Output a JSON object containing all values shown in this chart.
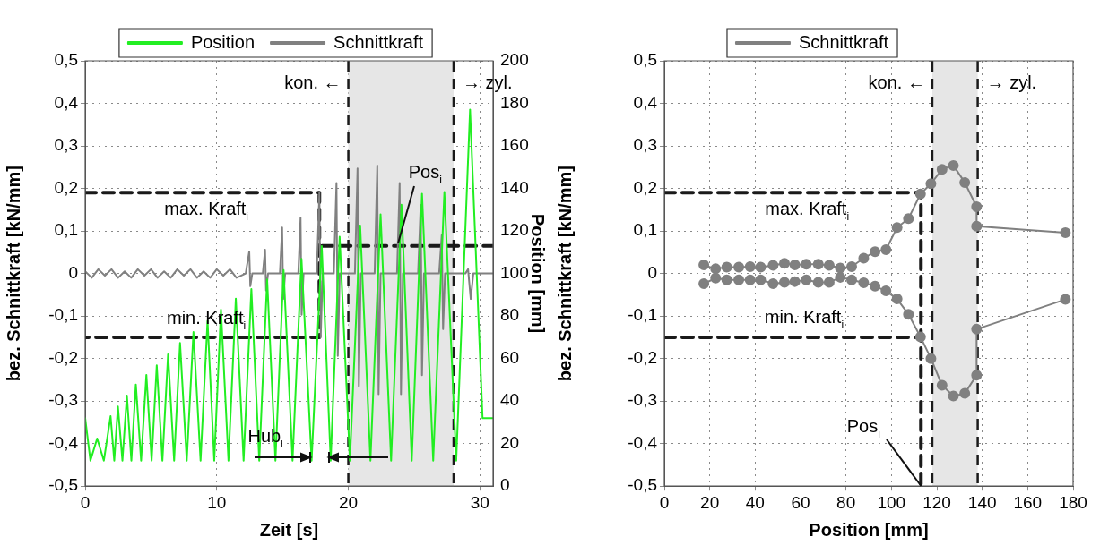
{
  "chart_data": [
    {
      "type": "line",
      "legend": "top",
      "grid": true,
      "marker": "none",
      "xlabel": "Zeit [s]",
      "ylabel": "bez. Schnittkraft [kN/mm]",
      "y2label": "Position [mm]",
      "xlim": [
        0,
        31
      ],
      "xticks": [
        0,
        10,
        20,
        30
      ],
      "ylim": [
        -0.5,
        0.5
      ],
      "yticks": [
        {
          "value": -0.5,
          "label": "-0,5"
        },
        {
          "value": -0.4,
          "label": "-0,4"
        },
        {
          "value": -0.3,
          "label": "-0,3"
        },
        {
          "value": -0.2,
          "label": "-0,2"
        },
        {
          "value": -0.1,
          "label": "-0,1"
        },
        0,
        {
          "value": 0.1,
          "label": "0,1"
        },
        {
          "value": 0.2,
          "label": "0,2"
        },
        {
          "value": 0.3,
          "label": "0,3"
        },
        {
          "value": 0.4,
          "label": "0,4"
        },
        {
          "value": 0.5,
          "label": "0,5"
        }
      ],
      "y2lim": [
        0,
        200
      ],
      "y2ticks": [
        0,
        20,
        40,
        60,
        80,
        100,
        120,
        140,
        160,
        180,
        200
      ],
      "bands": [
        {
          "axis": "x",
          "from": 20,
          "to": 28,
          "color": "#e6e6e6"
        }
      ],
      "ref_lines": [
        {
          "axis": "x",
          "value": 20,
          "label": "kon. ←",
          "color": "#1a1a1a",
          "line_style": "dashed"
        },
        {
          "axis": "x",
          "value": 28,
          "label": "→ zyl.",
          "color": "#1a1a1a",
          "line_style": "dashed"
        }
      ],
      "annotations": [
        "max. Kraft$_{i}$",
        "min. Kraft$_{i}$",
        {
          "text": "Pos$_{i}$",
          "x": 23.8,
          "y": 0.071
        },
        "Hub$_{i}$"
      ],
      "series": [
        {
          "name": "Position",
          "color": "#22ee22",
          "axis": "y2",
          "x": [
            0,
            0.4,
            0.91,
            1.42,
            1.93,
            2.21,
            2.49,
            2.83,
            3.17,
            3.51,
            3.85,
            4.25,
            4.65,
            5.05,
            5.44,
            5.87,
            6.3,
            6.76,
            7.21,
            7.72,
            8.23,
            8.77,
            9.3,
            9.81,
            10.32,
            10.89,
            11.45,
            12.04,
            12.63,
            13.23,
            13.83,
            14.46,
            15.08,
            15.76,
            16.44,
            17.21,
            17.98,
            18.66,
            19.34,
            20.12,
            20.9,
            21.68,
            22.45,
            23.25,
            24.04,
            24.82,
            25.6,
            26.45,
            27.3,
            28.2,
            29.25,
            30.2,
            31
          ],
          "values": [
            32,
            12,
            22.4,
            12,
            32.9,
            12,
            37.4,
            12,
            42.6,
            12,
            47.8,
            12,
            52.3,
            12,
            56.8,
            12,
            62,
            12,
            67.3,
            12,
            72.5,
            12,
            77.7,
            12,
            83,
            12,
            88.2,
            12,
            92.7,
            12,
            97.2,
            12,
            101.6,
            12,
            106.9,
            12,
            112.9,
            12,
            117.3,
            12,
            122.6,
            12,
            127.8,
            12,
            132.3,
            12,
            137.5,
            12,
            138.3,
            12,
            177.1,
            32,
            32
          ]
        },
        {
          "name": "Schnittkraft",
          "color": "#808080",
          "x": [
            0,
            0.5,
            1,
            1.5,
            2,
            2.5,
            3,
            3.5,
            4,
            4.5,
            5,
            5.5,
            6,
            6.5,
            7,
            7.5,
            8,
            8.5,
            9,
            9.5,
            10,
            10.5,
            11,
            11.5,
            12.2,
            12.47,
            12.55,
            12.7,
            13.5,
            13.67,
            13.75,
            13.9,
            14.8,
            14.97,
            15.05,
            15.2,
            16.2,
            16.37,
            16.45,
            16.6,
            17.6,
            17.8,
            17.9,
            18.05,
            18.9,
            19.1,
            19.2,
            19.35,
            20.5,
            20.7,
            20.8,
            20.95,
            22,
            22.2,
            22.3,
            22.45,
            23.7,
            23.9,
            24,
            24.15,
            25.3,
            25.5,
            25.6,
            25.75,
            26.9,
            27.1,
            27.2,
            27.35,
            28.9,
            29.1,
            29.3,
            29.5,
            31
          ],
          "values": [
            0.005,
            -0.01,
            0.01,
            -0.005,
            0.01,
            -0.01,
            0.005,
            -0.01,
            0.01,
            -0.005,
            0.01,
            -0.01,
            0.005,
            -0.01,
            0.01,
            -0.005,
            0.01,
            -0.01,
            0.005,
            -0.01,
            0.01,
            -0.005,
            0.01,
            -0.01,
            0,
            0.052,
            -0.03,
            0,
            0,
            0.056,
            -0.04,
            0,
            0,
            0.108,
            -0.06,
            0,
            0,
            0.131,
            -0.097,
            0,
            0,
            0.19,
            -0.15,
            0,
            0,
            0.213,
            -0.194,
            0,
            0,
            0.247,
            -0.265,
            0,
            0,
            0.254,
            -0.284,
            0,
            0,
            0.213,
            -0.284,
            0,
            0,
            0.161,
            -0.239,
            0,
            0,
            0.09,
            -0.131,
            0,
            0,
            0.01,
            -0.06,
            0,
            0
          ]
        },
        {
          "color": "#1a1a1a",
          "line_style": "dashed",
          "x": [
            0,
            17.8,
            17.8,
            0
          ],
          "values": [
            0.19,
            0.19,
            -0.15,
            -0.15
          ]
        },
        {
          "color": "#1a1a1a",
          "line_style": "dashed",
          "axis": "y2",
          "x": [
            18,
            31
          ],
          "values": [
            113,
            113
          ]
        }
      ]
    },
    {
      "type": "line",
      "legend": "top",
      "grid": true,
      "marker": "circle",
      "xlabel": "Position [mm]",
      "ylabel": "bez. Schnittkraft [kN/mm]",
      "xlim": [
        0,
        180
      ],
      "xticks": [
        0,
        20,
        40,
        60,
        80,
        100,
        120,
        140,
        160,
        180
      ],
      "ylim": [
        -0.5,
        0.5
      ],
      "yticks": [
        {
          "value": -0.5,
          "label": "-0,5"
        },
        {
          "value": -0.4,
          "label": "-0,4"
        },
        {
          "value": -0.3,
          "label": "-0,3"
        },
        {
          "value": -0.2,
          "label": "-0,2"
        },
        {
          "value": -0.1,
          "label": "-0,1"
        },
        0,
        {
          "value": 0.1,
          "label": "0,1"
        },
        {
          "value": 0.2,
          "label": "0,2"
        },
        {
          "value": 0.3,
          "label": "0,3"
        },
        {
          "value": 0.4,
          "label": "0,4"
        },
        {
          "value": 0.5,
          "label": "0,5"
        }
      ],
      "bands": [
        {
          "axis": "x",
          "from": 118,
          "to": 138,
          "color": "#e6e6e6"
        }
      ],
      "ref_lines": [
        {
          "axis": "x",
          "value": 118,
          "label": "kon. ←",
          "color": "#1a1a1a",
          "line_style": "dashed"
        },
        {
          "axis": "x",
          "value": 138,
          "label": "→ zyl.",
          "color": "#1a1a1a",
          "line_style": "dashed"
        }
      ],
      "annotations": [
        "max. Kraft$_{i}$",
        "min. Kraft$_{i}$",
        {
          "text": "Pos$_{i}$",
          "x": 113,
          "y": -0.5
        }
      ],
      "series": [
        {
          "name": "Schnittkraft",
          "color": "#808080",
          "x": [
            17.4,
            22.6,
            27.5,
            32.8,
            37.8,
            42.4,
            47.9,
            52.9,
            57.5,
            62.5,
            67.8,
            72.6,
            77.5,
            82.5,
            87.8,
            92.8,
            97.6,
            102.5,
            107.5,
            112.8,
            117.4,
            122.3,
            127.3,
            132.3,
            137.5,
            137.5,
            176.6
          ],
          "values": [
            0.02,
            0.011,
            0.015,
            0.015,
            0.016,
            0.015,
            0.019,
            0.024,
            0.02,
            0.022,
            0.022,
            0.019,
            0.013,
            0.016,
            0.036,
            0.051,
            0.056,
            0.108,
            0.129,
            0.187,
            0.211,
            0.245,
            0.254,
            0.214,
            0.157,
            0.111,
            0.096
          ]
        },
        {
          "color": "#808080",
          "x": [
            17.4,
            22.6,
            27.5,
            32.8,
            37.8,
            42.4,
            47.9,
            52.9,
            57.5,
            62.5,
            67.8,
            72.6,
            77.5,
            82.5,
            87.8,
            92.8,
            97.6,
            102.5,
            107.5,
            112.8,
            117.4,
            122.3,
            127.3,
            132.3,
            137.5,
            137.5,
            176.6
          ],
          "values": [
            -0.024,
            -0.011,
            -0.015,
            -0.015,
            -0.015,
            -0.015,
            -0.024,
            -0.021,
            -0.019,
            -0.015,
            -0.021,
            -0.021,
            -0.009,
            -0.015,
            -0.022,
            -0.03,
            -0.041,
            -0.06,
            -0.096,
            -0.149,
            -0.2,
            -0.263,
            -0.288,
            -0.282,
            -0.239,
            -0.131,
            -0.061
          ]
        },
        {
          "color": "#1a1a1a",
          "line_style": "dashed",
          "marker": "none",
          "x": [
            0,
            113,
            113
          ],
          "values": [
            0.19,
            0.19,
            -0.5
          ]
        },
        {
          "color": "#1a1a1a",
          "line_style": "dashed",
          "marker": "none",
          "x": [
            0,
            113
          ],
          "values": [
            -0.15,
            -0.15
          ]
        }
      ]
    }
  ]
}
